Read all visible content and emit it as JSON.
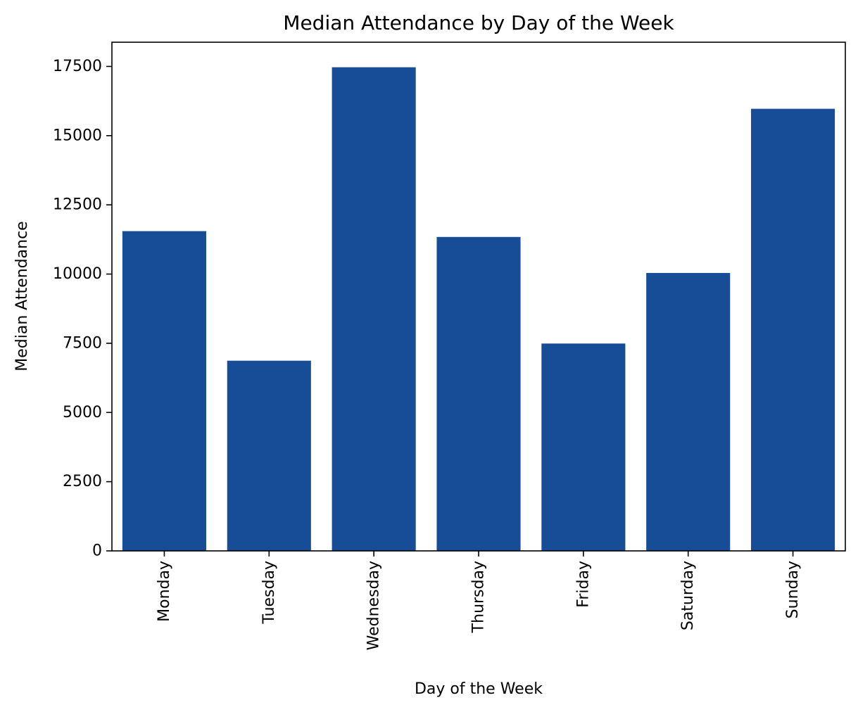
{
  "chart_data": {
    "type": "bar",
    "title": "Median Attendance by Day of the Week",
    "xlabel": "Day of the Week",
    "ylabel": "Median Attendance",
    "categories": [
      "Monday",
      "Tuesday",
      "Wednesday",
      "Thursday",
      "Friday",
      "Saturday",
      "Sunday"
    ],
    "values": [
      11550,
      6870,
      17470,
      11340,
      7490,
      10040,
      15970
    ],
    "ylim": [
      0,
      18375
    ],
    "yticks": [
      0,
      2500,
      5000,
      7500,
      10000,
      12500,
      15000,
      17500
    ],
    "ytick_labels": [
      "0",
      "2500",
      "5000",
      "7500",
      "10000",
      "12500",
      "15000",
      "17500"
    ],
    "bar_color": "#174c97",
    "grid": false,
    "legend": "none"
  }
}
